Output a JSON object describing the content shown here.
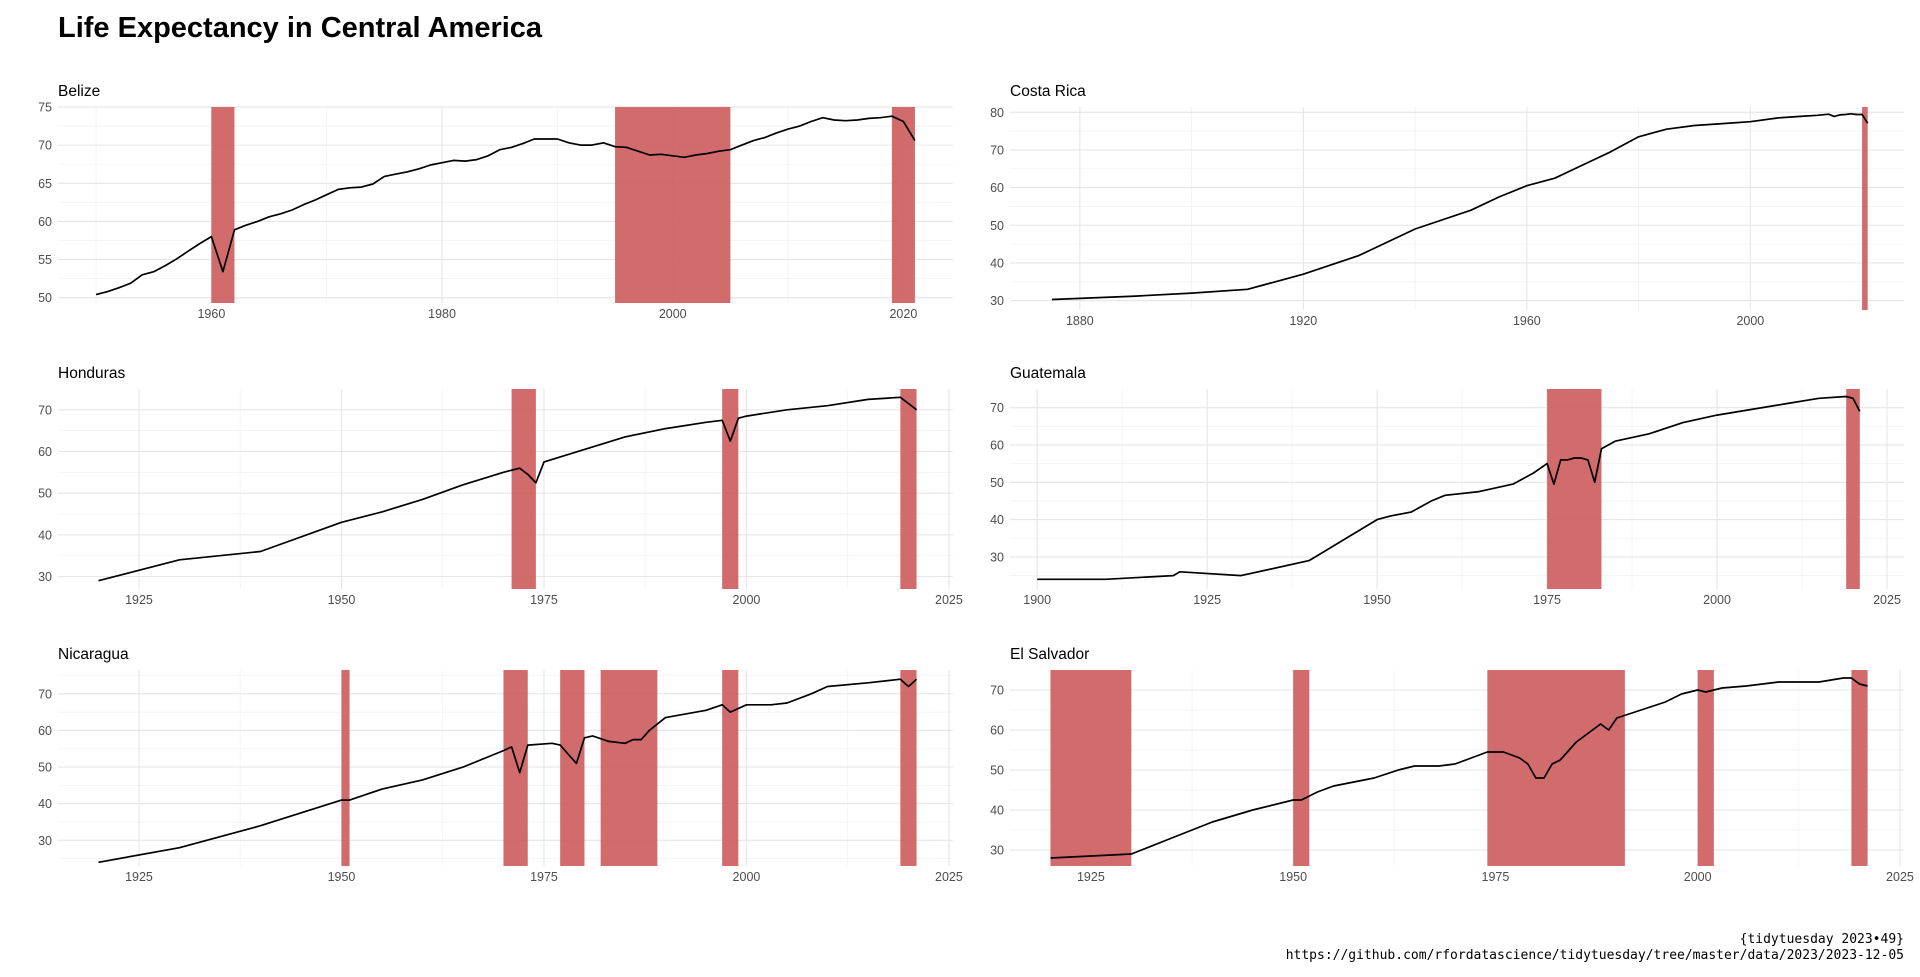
{
  "title": "Life Expectancy in Central America",
  "caption": [
    "{tidytuesday 2023•49}",
    "https://github.com/rfordatascience/tidytuesday/tree/master/data/2023/2023-12-05"
  ],
  "colors": {
    "band": "#cd5c5c",
    "line": "#000000",
    "grid": "#e6e6e6"
  },
  "chart_data": [
    {
      "type": "line",
      "title": "Belize",
      "xlim": [
        1946.7,
        2024.3
      ],
      "ylim": [
        49.3,
        75.0
      ],
      "xticks": [
        1960,
        1980,
        2000,
        2020
      ],
      "yticks": [
        50,
        55,
        60,
        65,
        70,
        75
      ],
      "bands": [
        [
          1960,
          1962
        ],
        [
          1995,
          2005
        ],
        [
          2019,
          2021
        ]
      ],
      "x": [
        1950,
        1951,
        1952,
        1953,
        1954,
        1955,
        1956,
        1957,
        1958,
        1959,
        1960,
        1961,
        1962,
        1963,
        1964,
        1965,
        1966,
        1967,
        1968,
        1969,
        1970,
        1971,
        1972,
        1973,
        1974,
        1975,
        1976,
        1977,
        1978,
        1979,
        1980,
        1981,
        1982,
        1983,
        1984,
        1985,
        1986,
        1987,
        1988,
        1989,
        1990,
        1991,
        1992,
        1993,
        1994,
        1995,
        1996,
        1997,
        1998,
        1999,
        2000,
        2001,
        2002,
        2003,
        2004,
        2005,
        2006,
        2007,
        2008,
        2009,
        2010,
        2011,
        2012,
        2013,
        2014,
        2015,
        2016,
        2017,
        2018,
        2019,
        2020,
        2021
      ],
      "y": [
        50.4,
        50.8,
        51.3,
        51.9,
        53.0,
        53.4,
        54.2,
        55.1,
        56.1,
        57.1,
        58.0,
        53.4,
        58.9,
        59.5,
        60.0,
        60.6,
        61.0,
        61.5,
        62.2,
        62.8,
        63.5,
        64.2,
        64.4,
        64.5,
        64.9,
        65.9,
        66.2,
        66.5,
        66.9,
        67.4,
        67.7,
        68.0,
        67.9,
        68.1,
        68.6,
        69.4,
        69.7,
        70.2,
        70.8,
        70.8,
        70.8,
        70.3,
        70.0,
        70.0,
        70.3,
        69.8,
        69.7,
        69.2,
        68.7,
        68.8,
        68.6,
        68.4,
        68.7,
        68.9,
        69.2,
        69.4,
        70.0,
        70.6,
        71.0,
        71.6,
        72.1,
        72.5,
        73.1,
        73.6,
        73.3,
        73.2,
        73.3,
        73.5,
        73.6,
        73.8,
        73.1,
        70.6
      ]
    },
    {
      "type": "line",
      "title": "Costa Rica",
      "xlim": [
        1867.5,
        2027.5
      ],
      "ylim": [
        27.5,
        81.4
      ],
      "xticks": [
        1880,
        1920,
        1960,
        2000
      ],
      "yticks": [
        30,
        40,
        50,
        60,
        70,
        80
      ],
      "bands": [
        [
          2020,
          2021
        ]
      ],
      "x": [
        1875,
        1890,
        1900,
        1910,
        1920,
        1930,
        1940,
        1950,
        1955,
        1960,
        1965,
        1970,
        1975,
        1980,
        1985,
        1990,
        1995,
        2000,
        2005,
        2010,
        2012,
        2014,
        2015,
        2016,
        2017,
        2018,
        2019,
        2020,
        2021
      ],
      "y": [
        30.3,
        31.2,
        32.0,
        33.0,
        37.0,
        42.0,
        49.0,
        54.0,
        57.5,
        60.5,
        62.5,
        66.0,
        69.5,
        73.5,
        75.5,
        76.5,
        77.0,
        77.5,
        78.5,
        79.0,
        79.2,
        79.5,
        78.9,
        79.3,
        79.4,
        79.6,
        79.4,
        79.4,
        77.1
      ]
    },
    {
      "type": "line",
      "title": "Honduras",
      "xlim": [
        1915.0,
        2025.5
      ],
      "ylim": [
        27.0,
        75.0
      ],
      "xticks": [
        1925,
        1950,
        1975,
        2000,
        2025
      ],
      "yticks": [
        30,
        40,
        50,
        60,
        70
      ],
      "bands": [
        [
          1971,
          1974
        ],
        [
          1997,
          1999
        ],
        [
          2019,
          2021
        ]
      ],
      "x": [
        1920,
        1930,
        1940,
        1950,
        1955,
        1960,
        1965,
        1970,
        1972,
        1973,
        1974,
        1975,
        1980,
        1985,
        1990,
        1995,
        1997,
        1998,
        1999,
        2000,
        2005,
        2010,
        2015,
        2019,
        2020,
        2021
      ],
      "y": [
        29.0,
        34.0,
        36.0,
        43.0,
        45.5,
        48.5,
        52.0,
        55.0,
        56.0,
        54.5,
        52.5,
        57.5,
        60.5,
        63.5,
        65.5,
        67.0,
        67.5,
        62.5,
        68.0,
        68.5,
        70.0,
        71.0,
        72.5,
        73.0,
        71.5,
        70.0
      ]
    },
    {
      "type": "line",
      "title": "Guatemala",
      "xlim": [
        1896.0,
        2027.5
      ],
      "ylim": [
        21.4,
        75.0
      ],
      "xticks": [
        1900,
        1925,
        1950,
        1975,
        2000,
        2025
      ],
      "yticks": [
        30,
        40,
        50,
        60,
        70
      ],
      "bands": [
        [
          1975,
          1983
        ],
        [
          2019,
          2021
        ]
      ],
      "x": [
        1900,
        1910,
        1920,
        1921,
        1930,
        1940,
        1950,
        1952,
        1955,
        1958,
        1960,
        1965,
        1970,
        1973,
        1975,
        1976,
        1977,
        1978,
        1979,
        1980,
        1981,
        1982,
        1983,
        1985,
        1990,
        1995,
        2000,
        2005,
        2010,
        2015,
        2019,
        2020,
        2021
      ],
      "y": [
        24.0,
        24.0,
        25.0,
        26.0,
        25.0,
        29.0,
        40.0,
        41.0,
        42.0,
        45.0,
        46.5,
        47.5,
        49.5,
        52.5,
        55.0,
        49.5,
        56.0,
        56.0,
        56.5,
        56.5,
        56.0,
        50.0,
        59.0,
        61.0,
        63.0,
        66.0,
        68.0,
        69.5,
        71.0,
        72.5,
        73.0,
        72.5,
        69.0
      ]
    },
    {
      "type": "line",
      "title": "Nicaragua",
      "xlim": [
        1915.0,
        2025.5
      ],
      "ylim": [
        23.0,
        76.5
      ],
      "xticks": [
        1925,
        1950,
        1975,
        2000,
        2025
      ],
      "yticks": [
        30,
        40,
        50,
        60,
        70
      ],
      "bands": [
        [
          1950,
          1951
        ],
        [
          1970,
          1973
        ],
        [
          1977,
          1980
        ],
        [
          1982,
          1989
        ],
        [
          1997,
          1999
        ],
        [
          2019,
          2021
        ]
      ],
      "x": [
        1920,
        1930,
        1940,
        1950,
        1951,
        1955,
        1960,
        1965,
        1970,
        1971,
        1972,
        1973,
        1976,
        1977,
        1978,
        1979,
        1980,
        1981,
        1983,
        1985,
        1986,
        1987,
        1988,
        1990,
        1995,
        1997,
        1998,
        2000,
        2003,
        2005,
        2008,
        2010,
        2015,
        2019,
        2020,
        2021
      ],
      "y": [
        24.0,
        28.0,
        34.0,
        41.0,
        41.0,
        44.0,
        46.5,
        50.0,
        54.5,
        55.5,
        48.5,
        56.0,
        56.5,
        56.0,
        53.5,
        51.0,
        58.0,
        58.5,
        57.0,
        56.5,
        57.5,
        57.5,
        60.0,
        63.5,
        65.5,
        67.0,
        65.0,
        67.0,
        67.0,
        67.5,
        70.0,
        72.0,
        73.0,
        74.0,
        72.0,
        74.0
      ]
    },
    {
      "type": "line",
      "title": "El Salvador",
      "xlim": [
        1915.0,
        2025.5
      ],
      "ylim": [
        26.0,
        75.0
      ],
      "xticks": [
        1925,
        1950,
        1975,
        2000,
        2025
      ],
      "yticks": [
        30,
        40,
        50,
        60,
        70
      ],
      "bands": [
        [
          1920,
          1930
        ],
        [
          1950,
          1952
        ],
        [
          1974,
          1991
        ],
        [
          2000,
          2002
        ],
        [
          2019,
          2021
        ]
      ],
      "x": [
        1920,
        1925,
        1930,
        1935,
        1940,
        1945,
        1950,
        1951,
        1953,
        1955,
        1960,
        1963,
        1965,
        1968,
        1970,
        1972,
        1974,
        1976,
        1978,
        1979,
        1980,
        1981,
        1982,
        1983,
        1985,
        1987,
        1988,
        1989,
        1990,
        1993,
        1996,
        1998,
        2000,
        2001,
        2003,
        2006,
        2010,
        2015,
        2018,
        2019,
        2020,
        2021
      ],
      "y": [
        28.0,
        28.5,
        29.0,
        33.0,
        37.0,
        40.0,
        42.5,
        42.5,
        44.5,
        46.0,
        48.0,
        50.0,
        51.0,
        51.0,
        51.5,
        53.0,
        54.5,
        54.5,
        53.0,
        51.5,
        48.0,
        48.0,
        51.5,
        52.5,
        57.0,
        60.0,
        61.5,
        60.0,
        63.0,
        65.0,
        67.0,
        69.0,
        70.0,
        69.5,
        70.5,
        71.0,
        72.0,
        72.0,
        73.0,
        73.0,
        71.5,
        71.0
      ]
    }
  ]
}
